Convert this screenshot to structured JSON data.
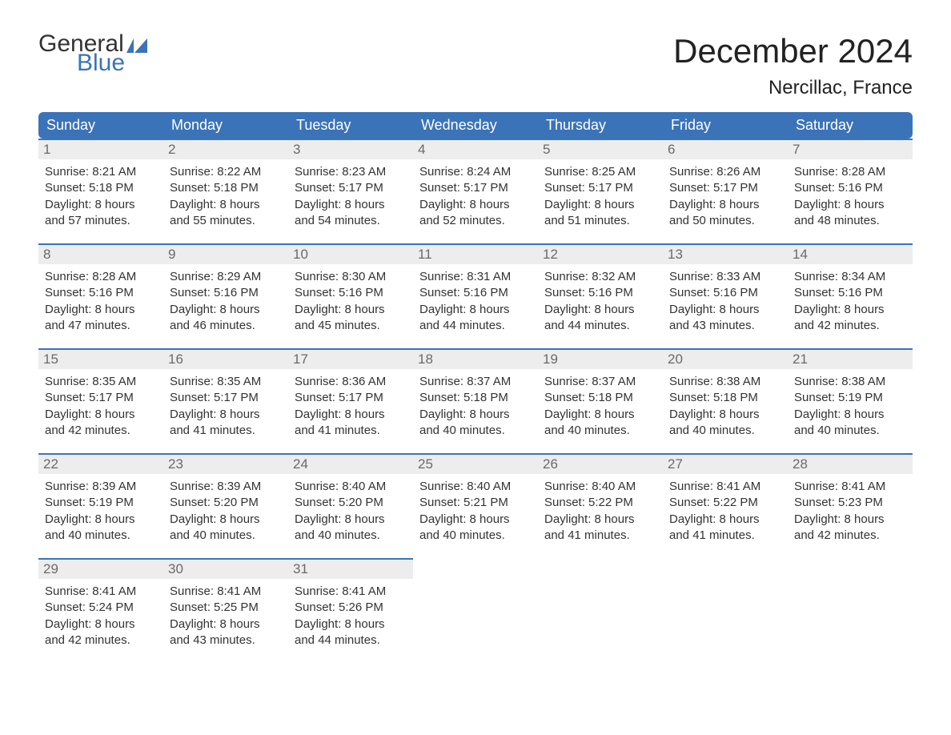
{
  "brand": {
    "word1": "General",
    "word2": "Blue",
    "color1": "#333333",
    "color2": "#3b73b9"
  },
  "title": "December 2024",
  "location": "Nercillac, France",
  "colors": {
    "header_bg": "#3b73b9",
    "header_text": "#ffffff",
    "daybar_bg": "#ededed",
    "daybar_border": "#3b73b9",
    "text": "#333333",
    "daynum": "#6a6a6a"
  },
  "weekdays": [
    "Sunday",
    "Monday",
    "Tuesday",
    "Wednesday",
    "Thursday",
    "Friday",
    "Saturday"
  ],
  "labels": {
    "sunrise": "Sunrise:",
    "sunset": "Sunset:",
    "daylight": "Daylight:"
  },
  "weeks": [
    [
      {
        "num": "1",
        "sunrise": "8:21 AM",
        "sunset": "5:18 PM",
        "daylight": "8 hours and 57 minutes."
      },
      {
        "num": "2",
        "sunrise": "8:22 AM",
        "sunset": "5:18 PM",
        "daylight": "8 hours and 55 minutes."
      },
      {
        "num": "3",
        "sunrise": "8:23 AM",
        "sunset": "5:17 PM",
        "daylight": "8 hours and 54 minutes."
      },
      {
        "num": "4",
        "sunrise": "8:24 AM",
        "sunset": "5:17 PM",
        "daylight": "8 hours and 52 minutes."
      },
      {
        "num": "5",
        "sunrise": "8:25 AM",
        "sunset": "5:17 PM",
        "daylight": "8 hours and 51 minutes."
      },
      {
        "num": "6",
        "sunrise": "8:26 AM",
        "sunset": "5:17 PM",
        "daylight": "8 hours and 50 minutes."
      },
      {
        "num": "7",
        "sunrise": "8:28 AM",
        "sunset": "5:16 PM",
        "daylight": "8 hours and 48 minutes."
      }
    ],
    [
      {
        "num": "8",
        "sunrise": "8:28 AM",
        "sunset": "5:16 PM",
        "daylight": "8 hours and 47 minutes."
      },
      {
        "num": "9",
        "sunrise": "8:29 AM",
        "sunset": "5:16 PM",
        "daylight": "8 hours and 46 minutes."
      },
      {
        "num": "10",
        "sunrise": "8:30 AM",
        "sunset": "5:16 PM",
        "daylight": "8 hours and 45 minutes."
      },
      {
        "num": "11",
        "sunrise": "8:31 AM",
        "sunset": "5:16 PM",
        "daylight": "8 hours and 44 minutes."
      },
      {
        "num": "12",
        "sunrise": "8:32 AM",
        "sunset": "5:16 PM",
        "daylight": "8 hours and 44 minutes."
      },
      {
        "num": "13",
        "sunrise": "8:33 AM",
        "sunset": "5:16 PM",
        "daylight": "8 hours and 43 minutes."
      },
      {
        "num": "14",
        "sunrise": "8:34 AM",
        "sunset": "5:16 PM",
        "daylight": "8 hours and 42 minutes."
      }
    ],
    [
      {
        "num": "15",
        "sunrise": "8:35 AM",
        "sunset": "5:17 PM",
        "daylight": "8 hours and 42 minutes."
      },
      {
        "num": "16",
        "sunrise": "8:35 AM",
        "sunset": "5:17 PM",
        "daylight": "8 hours and 41 minutes."
      },
      {
        "num": "17",
        "sunrise": "8:36 AM",
        "sunset": "5:17 PM",
        "daylight": "8 hours and 41 minutes."
      },
      {
        "num": "18",
        "sunrise": "8:37 AM",
        "sunset": "5:18 PM",
        "daylight": "8 hours and 40 minutes."
      },
      {
        "num": "19",
        "sunrise": "8:37 AM",
        "sunset": "5:18 PM",
        "daylight": "8 hours and 40 minutes."
      },
      {
        "num": "20",
        "sunrise": "8:38 AM",
        "sunset": "5:18 PM",
        "daylight": "8 hours and 40 minutes."
      },
      {
        "num": "21",
        "sunrise": "8:38 AM",
        "sunset": "5:19 PM",
        "daylight": "8 hours and 40 minutes."
      }
    ],
    [
      {
        "num": "22",
        "sunrise": "8:39 AM",
        "sunset": "5:19 PM",
        "daylight": "8 hours and 40 minutes."
      },
      {
        "num": "23",
        "sunrise": "8:39 AM",
        "sunset": "5:20 PM",
        "daylight": "8 hours and 40 minutes."
      },
      {
        "num": "24",
        "sunrise": "8:40 AM",
        "sunset": "5:20 PM",
        "daylight": "8 hours and 40 minutes."
      },
      {
        "num": "25",
        "sunrise": "8:40 AM",
        "sunset": "5:21 PM",
        "daylight": "8 hours and 40 minutes."
      },
      {
        "num": "26",
        "sunrise": "8:40 AM",
        "sunset": "5:22 PM",
        "daylight": "8 hours and 41 minutes."
      },
      {
        "num": "27",
        "sunrise": "8:41 AM",
        "sunset": "5:22 PM",
        "daylight": "8 hours and 41 minutes."
      },
      {
        "num": "28",
        "sunrise": "8:41 AM",
        "sunset": "5:23 PM",
        "daylight": "8 hours and 42 minutes."
      }
    ],
    [
      {
        "num": "29",
        "sunrise": "8:41 AM",
        "sunset": "5:24 PM",
        "daylight": "8 hours and 42 minutes."
      },
      {
        "num": "30",
        "sunrise": "8:41 AM",
        "sunset": "5:25 PM",
        "daylight": "8 hours and 43 minutes."
      },
      {
        "num": "31",
        "sunrise": "8:41 AM",
        "sunset": "5:26 PM",
        "daylight": "8 hours and 44 minutes."
      },
      null,
      null,
      null,
      null
    ]
  ]
}
